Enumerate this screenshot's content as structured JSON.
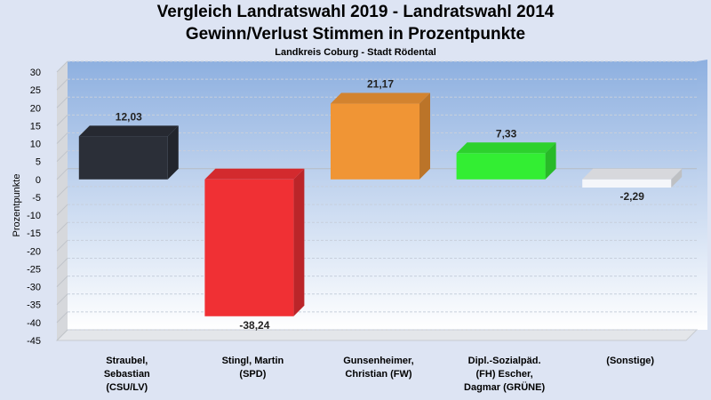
{
  "chart_data": {
    "type": "bar",
    "title": "Vergleich Landratswahl 2019 - Landratswahl 2014",
    "subtitle": "Gewinn/Verlust Stimmen in Prozentpunkte",
    "subsubtitle": "Landkreis Coburg - Stadt Rödental",
    "ylabel": "Prozentpunkte",
    "xlabel": "",
    "ylim": [
      -45,
      30
    ],
    "yticks": [
      30,
      25,
      20,
      15,
      10,
      5,
      0,
      -5,
      -10,
      -15,
      -20,
      -25,
      -30,
      -35,
      -40,
      -45
    ],
    "grid": true,
    "categories": [
      [
        "Straubel,",
        "Sebastian",
        "(CSU/LV)"
      ],
      [
        "Stingl, Martin",
        "(SPD)"
      ],
      [
        "Gunsenheimer,",
        "Christian (FW)"
      ],
      [
        "Dipl.-Sozialpäd.",
        "(FH) Escher,",
        "Dagmar (GRÜNE)"
      ],
      [
        "(Sonstige)"
      ]
    ],
    "values": [
      12.03,
      -38.24,
      21.17,
      7.33,
      -2.29
    ],
    "value_labels": [
      "12,03",
      "-38,24",
      "21,17",
      "7,33",
      "-2,29"
    ],
    "colors": [
      "#2b2f38",
      "#f03034",
      "#f09535",
      "#33ee33",
      "#f4f6fa"
    ]
  }
}
